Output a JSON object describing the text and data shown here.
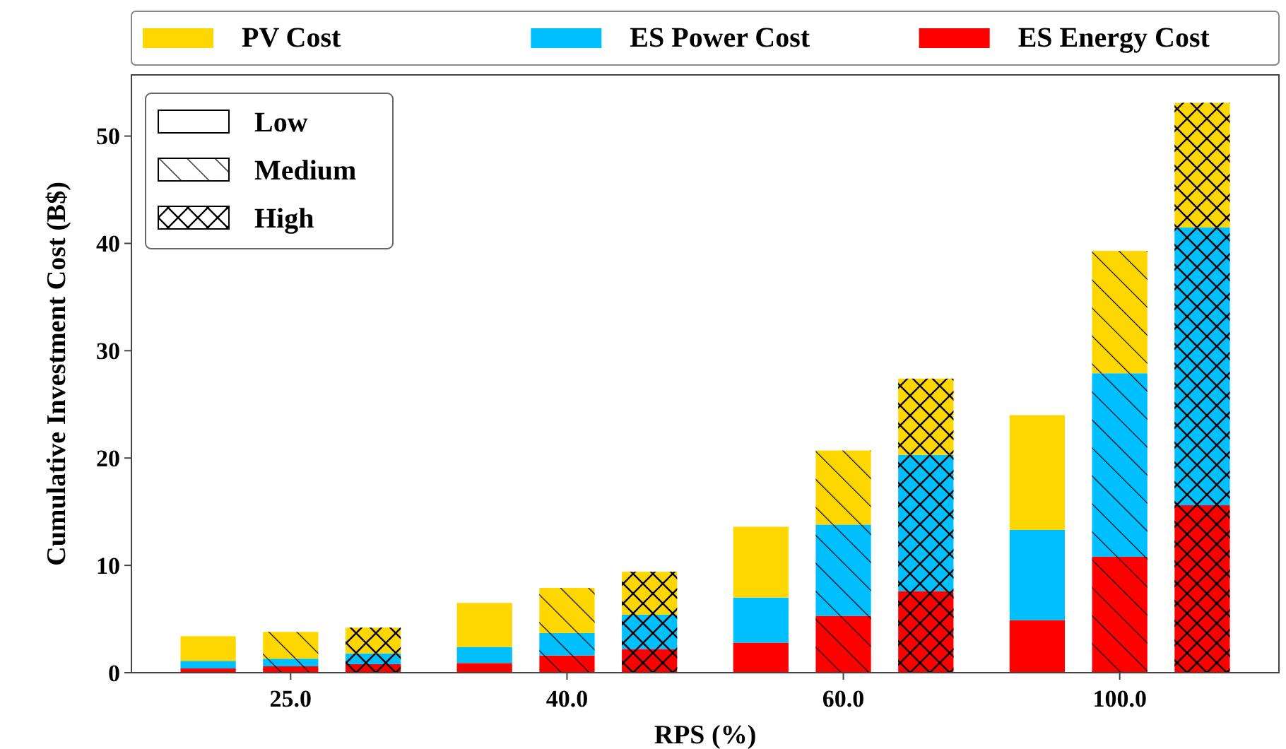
{
  "chart_data": {
    "type": "bar",
    "stacked": true,
    "xlabel": "RPS (%)",
    "ylabel": "Cumulative Investment Cost (B$)",
    "categories": [
      null,
      "25.0",
      null,
      null,
      "40.0",
      null,
      null,
      "60.0",
      null,
      null,
      "100.0",
      null
    ],
    "series": [
      {
        "name": "ES Energy Cost",
        "color": "#ff0000",
        "values": [
          0.4,
          0.6,
          0.8,
          0.9,
          1.6,
          2.2,
          2.8,
          5.3,
          7.6,
          4.9,
          10.8,
          15.6
        ]
      },
      {
        "name": "ES Power Cost",
        "color": "#00bfff",
        "values": [
          0.7,
          0.7,
          1.0,
          1.5,
          2.1,
          3.2,
          4.2,
          8.5,
          12.7,
          8.4,
          17.1,
          25.9
        ]
      },
      {
        "name": "PV Cost",
        "color": "#ffd700",
        "values": [
          2.3,
          2.5,
          2.4,
          4.1,
          4.2,
          4.0,
          6.6,
          6.9,
          7.1,
          10.7,
          11.4,
          11.6
        ]
      }
    ],
    "ylim": [
      0,
      55.7
    ],
    "yticks": [
      0,
      10,
      20,
      30,
      40,
      50
    ],
    "annotations": [
      "Low",
      "Medium",
      "High"
    ],
    "legend": "top",
    "grid": false
  }
}
